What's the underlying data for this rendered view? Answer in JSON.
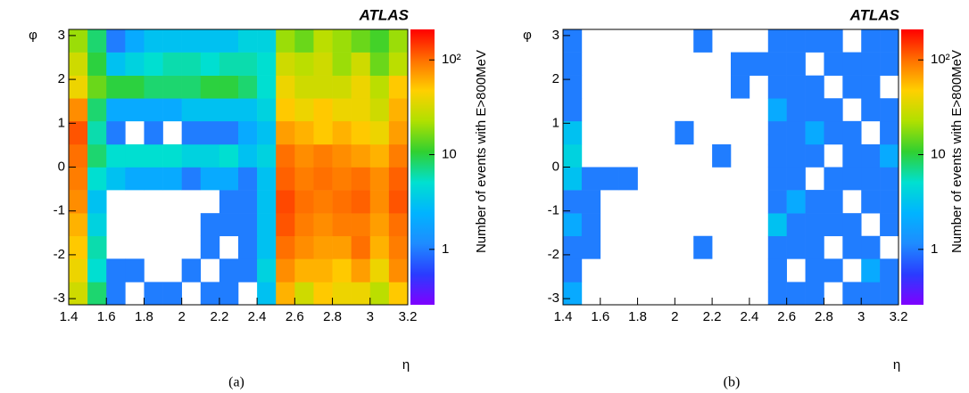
{
  "chart_data": [
    {
      "type": "heatmap",
      "title": "ATLAS",
      "x_label": "η",
      "y_label": "φ",
      "colorbar_label": "Number of events with E>800MeV",
      "caption": "(a)",
      "xlim": [
        1.4,
        3.2
      ],
      "xticks": [
        1.4,
        1.6,
        1.8,
        2,
        2.2,
        2.4,
        2.6,
        2.8,
        3,
        3.2
      ],
      "ylim": [
        -3.14,
        3.14
      ],
      "yticks": [
        -3,
        -2,
        -1,
        0,
        1,
        2,
        3
      ],
      "zlim": [
        0.26,
        210
      ],
      "zlog": true,
      "zticks": [
        1,
        10,
        {
          "value": 100,
          "label": "10²"
        }
      ],
      "colormap": [
        "#7f00ff",
        "#2a3cff",
        "#1e8cff",
        "#00b4ff",
        "#00e0d0",
        "#30d030",
        "#b0e000",
        "#ffd000",
        "#ff7000",
        "#ff0000"
      ],
      "x_bins": [
        1.4,
        1.5,
        1.6,
        1.7,
        1.8,
        1.9,
        2.0,
        2.1,
        2.2,
        2.3,
        2.4,
        2.5,
        2.6,
        2.7,
        2.8,
        2.9,
        3.0,
        3.1,
        3.2
      ],
      "y_bins": [
        -3.14,
        -2.62,
        -2.09,
        -1.57,
        -1.05,
        -0.52,
        0,
        0.52,
        1.05,
        1.57,
        2.09,
        2.62,
        3.14
      ],
      "values": [
        [
          30,
          8,
          1,
          null,
          1,
          1,
          null,
          1,
          1,
          null,
          3,
          60,
          30,
          50,
          40,
          40,
          25,
          50
        ],
        [
          40,
          5,
          1,
          1,
          null,
          null,
          1,
          null,
          1,
          1,
          4,
          80,
          60,
          60,
          50,
          70,
          40,
          80
        ],
        [
          50,
          6,
          null,
          null,
          null,
          null,
          null,
          1,
          null,
          1,
          3,
          100,
          80,
          70,
          70,
          100,
          60,
          90
        ],
        [
          60,
          4,
          null,
          null,
          null,
          null,
          null,
          1,
          1,
          1,
          3,
          120,
          90,
          80,
          90,
          90,
          70,
          100
        ],
        [
          80,
          3,
          null,
          null,
          null,
          null,
          null,
          null,
          1,
          1,
          3,
          130,
          100,
          90,
          100,
          110,
          80,
          120
        ],
        [
          90,
          5,
          3,
          2,
          2,
          2,
          1,
          2,
          2,
          1,
          3,
          110,
          90,
          100,
          90,
          100,
          80,
          110
        ],
        [
          100,
          8,
          5,
          5,
          5,
          5,
          4,
          4,
          5,
          3,
          4,
          100,
          80,
          90,
          80,
          70,
          60,
          90
        ],
        [
          120,
          6,
          1,
          null,
          1,
          null,
          1,
          1,
          1,
          2,
          3,
          70,
          60,
          50,
          60,
          50,
          40,
          70
        ],
        [
          80,
          8,
          2,
          2,
          2,
          2,
          3,
          3,
          3,
          3,
          4,
          50,
          40,
          50,
          40,
          40,
          30,
          60
        ],
        [
          40,
          15,
          10,
          10,
          8,
          8,
          8,
          10,
          10,
          8,
          5,
          40,
          30,
          30,
          30,
          40,
          25,
          50
        ],
        [
          30,
          10,
          3,
          4,
          5,
          6,
          6,
          5,
          6,
          6,
          5,
          30,
          25,
          30,
          20,
          30,
          15,
          25
        ],
        [
          20,
          8,
          1,
          2,
          3,
          3,
          3,
          3,
          3,
          4,
          4,
          20,
          15,
          25,
          20,
          15,
          12,
          20
        ]
      ]
    },
    {
      "type": "heatmap",
      "title": "ATLAS",
      "x_label": "η",
      "y_label": "φ",
      "colorbar_label": "Number of events with E>800MeV",
      "caption": "(b)",
      "xlim": [
        1.4,
        3.2
      ],
      "xticks": [
        1.4,
        1.6,
        1.8,
        2,
        2.2,
        2.4,
        2.6,
        2.8,
        3,
        3.2
      ],
      "ylim": [
        -3.14,
        3.14
      ],
      "yticks": [
        -3,
        -2,
        -1,
        0,
        1,
        2,
        3
      ],
      "zlim": [
        0.26,
        210
      ],
      "zlog": true,
      "zticks": [
        1,
        10,
        {
          "value": 100,
          "label": "10²"
        }
      ],
      "colormap": [
        "#7f00ff",
        "#2a3cff",
        "#1e8cff",
        "#00b4ff",
        "#00e0d0",
        "#30d030",
        "#b0e000",
        "#ffd000",
        "#ff7000",
        "#ff0000"
      ],
      "x_bins": [
        1.4,
        1.5,
        1.6,
        1.7,
        1.8,
        1.9,
        2.0,
        2.1,
        2.2,
        2.3,
        2.4,
        2.5,
        2.6,
        2.7,
        2.8,
        2.9,
        3.0,
        3.1,
        3.2
      ],
      "y_bins": [
        -3.14,
        -2.62,
        -2.09,
        -1.57,
        -1.05,
        -0.52,
        0,
        0.52,
        1.05,
        1.57,
        2.09,
        2.62,
        3.14
      ],
      "values": [
        [
          2,
          null,
          null,
          null,
          null,
          null,
          null,
          null,
          null,
          null,
          null,
          1,
          1,
          1,
          null,
          1,
          1,
          1
        ],
        [
          1,
          null,
          null,
          null,
          null,
          null,
          null,
          null,
          null,
          null,
          null,
          1,
          null,
          1,
          1,
          null,
          2,
          1
        ],
        [
          1,
          1,
          null,
          null,
          null,
          null,
          null,
          1,
          null,
          null,
          null,
          1,
          1,
          1,
          null,
          1,
          1,
          null
        ],
        [
          2,
          1,
          null,
          null,
          null,
          null,
          null,
          null,
          null,
          null,
          null,
          3,
          1,
          1,
          1,
          1,
          null,
          1
        ],
        [
          1,
          1,
          null,
          null,
          null,
          null,
          null,
          null,
          null,
          null,
          null,
          1,
          2,
          1,
          1,
          null,
          1,
          1
        ],
        [
          3,
          1,
          1,
          1,
          null,
          null,
          null,
          null,
          null,
          null,
          null,
          1,
          1,
          null,
          1,
          1,
          1,
          1
        ],
        [
          4,
          null,
          null,
          null,
          null,
          null,
          null,
          null,
          1,
          null,
          null,
          1,
          1,
          1,
          null,
          1,
          1,
          2
        ],
        [
          3,
          null,
          null,
          null,
          null,
          null,
          1,
          null,
          null,
          null,
          null,
          1,
          1,
          2,
          1,
          1,
          null,
          1
        ],
        [
          1,
          null,
          null,
          null,
          null,
          null,
          null,
          null,
          null,
          null,
          null,
          2,
          1,
          1,
          1,
          null,
          1,
          1
        ],
        [
          1,
          null,
          null,
          null,
          null,
          null,
          null,
          null,
          null,
          1,
          null,
          1,
          1,
          1,
          null,
          1,
          1,
          null
        ],
        [
          1,
          null,
          null,
          null,
          null,
          null,
          null,
          null,
          null,
          1,
          1,
          1,
          1,
          null,
          1,
          1,
          1,
          1
        ],
        [
          1,
          null,
          null,
          null,
          null,
          null,
          null,
          1,
          null,
          null,
          null,
          1,
          1,
          1,
          1,
          null,
          1,
          1
        ]
      ]
    }
  ]
}
